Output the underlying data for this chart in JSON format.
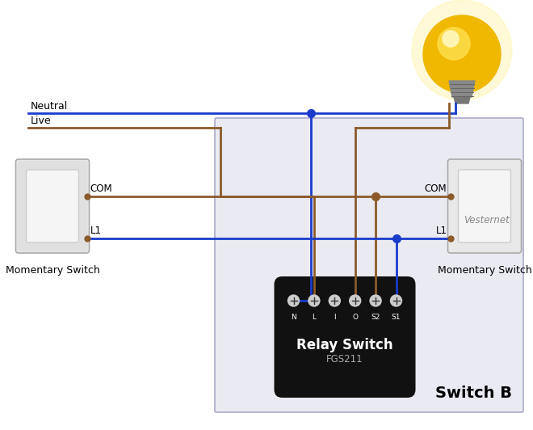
{
  "bg_color": "#ffffff",
  "wire_blue": "#1a3ccc",
  "wire_brown": "#8B5A2B",
  "box_color": "#eaeaf2",
  "box_edge": "#aaaacc",
  "relay_color": "#111111",
  "relay_text": "Relay Switch",
  "relay_sub": "FGS211",
  "relay_labels": [
    "N",
    "L",
    "I",
    "O",
    "S2",
    "S1"
  ],
  "switch_b_label": "Switch B",
  "neutral_label": "Neutral",
  "live_label": "Live",
  "vesternet_label": "Vesternet",
  "momentary_label": "Momentary Switch",
  "com_label": "COM",
  "l1_label": "L1"
}
